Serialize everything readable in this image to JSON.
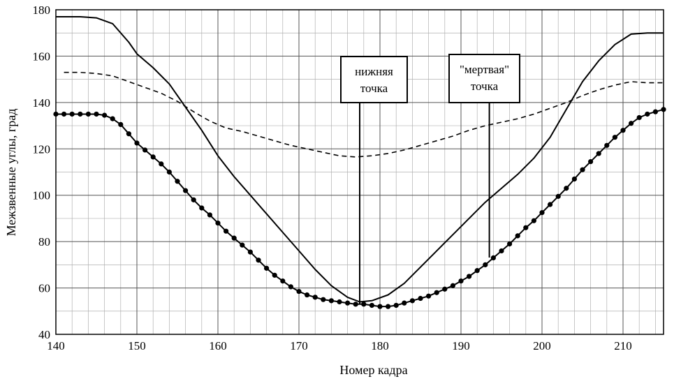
{
  "chart_data": {
    "type": "line",
    "title": "",
    "xlabel": "Номер кадра",
    "ylabel": "Межзвенные углы, град",
    "xlim": [
      140,
      215
    ],
    "ylim": [
      40,
      180
    ],
    "x_ticks": [
      "140",
      "150",
      "160",
      "170",
      "180",
      "190",
      "200",
      "210"
    ],
    "y_ticks": [
      "40",
      "60",
      "80",
      "100",
      "120",
      "140",
      "160",
      "180"
    ],
    "grid": true,
    "legend": "none",
    "series": [
      {
        "name": "solid",
        "style": "solid",
        "points": [
          [
            140,
            177
          ],
          [
            143,
            177
          ],
          [
            145,
            176.5
          ],
          [
            147,
            174
          ],
          [
            149,
            166
          ],
          [
            150,
            161
          ],
          [
            152,
            155
          ],
          [
            154,
            148
          ],
          [
            156,
            138
          ],
          [
            158,
            128
          ],
          [
            160,
            117
          ],
          [
            162,
            108
          ],
          [
            164,
            100
          ],
          [
            166,
            92
          ],
          [
            168,
            84
          ],
          [
            170,
            76
          ],
          [
            172,
            68
          ],
          [
            174,
            61
          ],
          [
            176,
            56
          ],
          [
            177.5,
            54
          ],
          [
            179,
            54.5
          ],
          [
            181,
            57
          ],
          [
            183,
            62
          ],
          [
            185,
            69
          ],
          [
            187,
            76
          ],
          [
            189,
            83
          ],
          [
            191,
            90
          ],
          [
            193,
            97
          ],
          [
            195,
            103
          ],
          [
            197,
            109
          ],
          [
            199,
            116
          ],
          [
            201,
            125
          ],
          [
            203,
            137
          ],
          [
            205,
            149
          ],
          [
            207,
            158
          ],
          [
            209,
            165
          ],
          [
            211,
            169.5
          ],
          [
            213,
            170
          ],
          [
            215,
            170
          ]
        ]
      },
      {
        "name": "dashed",
        "style": "dashed",
        "points": [
          [
            141,
            153
          ],
          [
            143,
            153
          ],
          [
            145,
            152.5
          ],
          [
            147,
            151.5
          ],
          [
            149,
            149
          ],
          [
            151,
            146.5
          ],
          [
            153,
            144
          ],
          [
            155,
            140.5
          ],
          [
            157,
            136
          ],
          [
            159,
            132
          ],
          [
            161,
            129
          ],
          [
            163,
            127.5
          ],
          [
            165,
            125.5
          ],
          [
            167,
            123.5
          ],
          [
            169,
            121.5
          ],
          [
            171,
            120
          ],
          [
            173,
            118.5
          ],
          [
            175,
            117
          ],
          [
            177,
            116.5
          ],
          [
            179,
            117
          ],
          [
            181,
            118
          ],
          [
            183,
            119.5
          ],
          [
            185,
            121.5
          ],
          [
            187,
            123.5
          ],
          [
            189,
            125.5
          ],
          [
            191,
            128
          ],
          [
            193,
            130
          ],
          [
            195,
            131.5
          ],
          [
            197,
            133
          ],
          [
            199,
            135
          ],
          [
            201,
            137.5
          ],
          [
            203,
            140
          ],
          [
            205,
            143
          ],
          [
            207,
            145.5
          ],
          [
            209,
            147.5
          ],
          [
            211,
            149
          ],
          [
            213,
            148.5
          ],
          [
            215,
            148.5
          ]
        ]
      },
      {
        "name": "dotted-markers",
        "style": "solid-with-markers",
        "points": [
          [
            140,
            135
          ],
          [
            141,
            135
          ],
          [
            142,
            135
          ],
          [
            143,
            135
          ],
          [
            144,
            135
          ],
          [
            145,
            135
          ],
          [
            146,
            134.5
          ],
          [
            147,
            133
          ],
          [
            148,
            130.5
          ],
          [
            149,
            126.5
          ],
          [
            150,
            122.5
          ],
          [
            151,
            119.5
          ],
          [
            152,
            116.5
          ],
          [
            153,
            113.5
          ],
          [
            154,
            110
          ],
          [
            155,
            106
          ],
          [
            156,
            102
          ],
          [
            157,
            98
          ],
          [
            158,
            94.5
          ],
          [
            159,
            91.5
          ],
          [
            160,
            88
          ],
          [
            161,
            84.5
          ],
          [
            162,
            81.5
          ],
          [
            163,
            78.5
          ],
          [
            164,
            75.5
          ],
          [
            165,
            72
          ],
          [
            166,
            68.5
          ],
          [
            167,
            65.5
          ],
          [
            168,
            63
          ],
          [
            169,
            60.5
          ],
          [
            170,
            58.5
          ],
          [
            171,
            57
          ],
          [
            172,
            56
          ],
          [
            173,
            55
          ],
          [
            174,
            54.5
          ],
          [
            175,
            54
          ],
          [
            176,
            53.5
          ],
          [
            177,
            53
          ],
          [
            178,
            53
          ],
          [
            179,
            52.5
          ],
          [
            180,
            52
          ],
          [
            181,
            52
          ],
          [
            182,
            52.5
          ],
          [
            183,
            53.5
          ],
          [
            184,
            54.5
          ],
          [
            185,
            55.5
          ],
          [
            186,
            56.5
          ],
          [
            187,
            58
          ],
          [
            188,
            59.5
          ],
          [
            189,
            61
          ],
          [
            190,
            63
          ],
          [
            191,
            65
          ],
          [
            192,
            67.5
          ],
          [
            193,
            70
          ],
          [
            194,
            73
          ],
          [
            195,
            76
          ],
          [
            196,
            79
          ],
          [
            197,
            82.5
          ],
          [
            198,
            86
          ],
          [
            199,
            89
          ],
          [
            200,
            92.5
          ],
          [
            201,
            96
          ],
          [
            202,
            99.5
          ],
          [
            203,
            103
          ],
          [
            204,
            107
          ],
          [
            205,
            111
          ],
          [
            206,
            114.5
          ],
          [
            207,
            118
          ],
          [
            208,
            121.5
          ],
          [
            209,
            125
          ],
          [
            210,
            128
          ],
          [
            211,
            131
          ],
          [
            212,
            133.5
          ],
          [
            213,
            135
          ],
          [
            214,
            136
          ],
          [
            215,
            137
          ]
        ]
      }
    ],
    "annotations": [
      {
        "lines": [
          "нижняя",
          "точка"
        ],
        "x": 177.5
      },
      {
        "lines": [
          "\"мертвая\"",
          "точка"
        ],
        "x": 193.5
      }
    ]
  }
}
